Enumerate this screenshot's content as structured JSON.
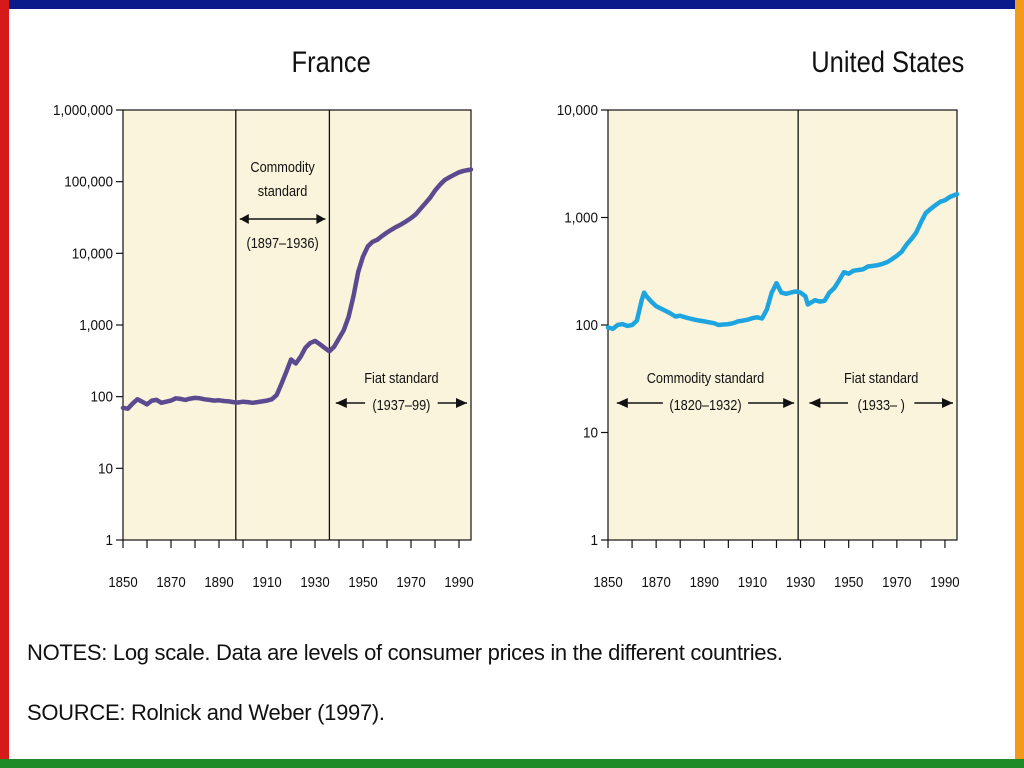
{
  "notes": "NOTES: Log scale. Data are levels of consumer prices in the different countries.",
  "source": "SOURCE: Rolnick and Weber (1997).",
  "colors": {
    "frame_top": "#0b1a8a",
    "frame_left": "#d61a1a",
    "frame_right": "#f39a1a",
    "frame_bottom": "#1f8a28",
    "plot_background": "#fbf4dc"
  },
  "chart_data": [
    {
      "type": "line",
      "title": "France",
      "scale_y": "log",
      "ylim": [
        1,
        1000000
      ],
      "xlim": [
        1850,
        1995
      ],
      "y_ticks": [
        {
          "value": 1,
          "label": "1"
        },
        {
          "value": 10,
          "label": "10"
        },
        {
          "value": 100,
          "label": "100"
        },
        {
          "value": 1000,
          "label": "1,000"
        },
        {
          "value": 10000,
          "label": "10,000"
        },
        {
          "value": 100000,
          "label": "100,000"
        },
        {
          "value": 1000000,
          "label": "1,000,000"
        }
      ],
      "x_ticks": [
        {
          "value": 1850,
          "label": "1850"
        },
        {
          "value": 1870,
          "label": "1870"
        },
        {
          "value": 1890,
          "label": "1890"
        },
        {
          "value": 1910,
          "label": "1910"
        },
        {
          "value": 1930,
          "label": "1930"
        },
        {
          "value": 1950,
          "label": "1950"
        },
        {
          "value": 1970,
          "label": "1970"
        },
        {
          "value": 1990,
          "label": "1990"
        }
      ],
      "regime_lines": [
        1897,
        1936
      ],
      "annotations": [
        {
          "lines": [
            "Commodity",
            "standard",
            "(1897–1936)"
          ],
          "arrow": [
            1897,
            1936
          ],
          "y_value": 17000
        },
        {
          "lines": [
            "Fiat standard",
            "(1937–99)"
          ],
          "arrow": [
            1937,
            1995
          ],
          "y_value": 100
        }
      ],
      "series": [
        {
          "color": "#5b4a8f",
          "x": [
            1850,
            1852,
            1854,
            1856,
            1858,
            1860,
            1862,
            1864,
            1866,
            1868,
            1870,
            1872,
            1874,
            1876,
            1878,
            1880,
            1882,
            1884,
            1886,
            1888,
            1890,
            1892,
            1894,
            1896,
            1898,
            1900,
            1902,
            1904,
            1906,
            1908,
            1910,
            1912,
            1914,
            1916,
            1918,
            1920,
            1922,
            1924,
            1926,
            1928,
            1930,
            1932,
            1934,
            1936,
            1938,
            1940,
            1942,
            1944,
            1946,
            1948,
            1950,
            1952,
            1954,
            1956,
            1958,
            1960,
            1962,
            1964,
            1966,
            1968,
            1970,
            1972,
            1974,
            1976,
            1978,
            1980,
            1982,
            1984,
            1986,
            1988,
            1990,
            1992,
            1995
          ],
          "y": [
            70,
            68,
            80,
            92,
            85,
            78,
            88,
            90,
            82,
            85,
            88,
            95,
            93,
            90,
            94,
            96,
            95,
            92,
            90,
            88,
            89,
            87,
            86,
            84,
            83,
            85,
            84,
            82,
            84,
            86,
            88,
            92,
            105,
            150,
            220,
            330,
            290,
            360,
            480,
            560,
            600,
            540,
            480,
            430,
            500,
            650,
            850,
            1300,
            2500,
            5500,
            9000,
            12500,
            14500,
            15500,
            17500,
            19500,
            21500,
            23500,
            25500,
            28000,
            31000,
            35000,
            42000,
            50000,
            60000,
            75000,
            90000,
            105000,
            115000,
            125000,
            135000,
            142000,
            148000
          ]
        }
      ]
    },
    {
      "type": "line",
      "title": "United States",
      "scale_y": "log",
      "ylim": [
        1,
        10000
      ],
      "xlim": [
        1850,
        1995
      ],
      "y_ticks": [
        {
          "value": 1,
          "label": "1"
        },
        {
          "value": 10,
          "label": "10"
        },
        {
          "value": 100,
          "label": "100"
        },
        {
          "value": 1000,
          "label": "1,000"
        },
        {
          "value": 10000,
          "label": "10,000"
        }
      ],
      "x_ticks": [
        {
          "value": 1850,
          "label": "1850"
        },
        {
          "value": 1870,
          "label": "1870"
        },
        {
          "value": 1890,
          "label": "1890"
        },
        {
          "value": 1910,
          "label": "1910"
        },
        {
          "value": 1930,
          "label": "1930"
        },
        {
          "value": 1950,
          "label": "1950"
        },
        {
          "value": 1970,
          "label": "1970"
        },
        {
          "value": 1990,
          "label": "1990"
        }
      ],
      "regime_lines": [
        1929
      ],
      "annotations": [
        {
          "lines": [
            "Commodity standard",
            "(1820–1932)"
          ],
          "arrow": [
            1852,
            1929
          ],
          "y_value": 30
        },
        {
          "lines": [
            "Fiat standard",
            "(1933– )"
          ],
          "arrow": [
            1932,
            1995
          ],
          "y_value": 30
        }
      ],
      "series": [
        {
          "color": "#1ea5e0",
          "x": [
            1850,
            1852,
            1854,
            1856,
            1858,
            1860,
            1862,
            1864,
            1865,
            1866,
            1868,
            1870,
            1872,
            1874,
            1876,
            1878,
            1880,
            1882,
            1884,
            1886,
            1888,
            1890,
            1892,
            1894,
            1896,
            1898,
            1900,
            1902,
            1904,
            1906,
            1908,
            1910,
            1912,
            1914,
            1916,
            1918,
            1920,
            1922,
            1924,
            1926,
            1928,
            1930,
            1932,
            1933,
            1934,
            1936,
            1938,
            1940,
            1942,
            1944,
            1946,
            1948,
            1950,
            1952,
            1954,
            1956,
            1958,
            1960,
            1962,
            1964,
            1966,
            1968,
            1970,
            1972,
            1974,
            1976,
            1978,
            1980,
            1982,
            1984,
            1986,
            1988,
            1990,
            1992,
            1995
          ],
          "y": [
            95,
            92,
            100,
            102,
            98,
            100,
            110,
            170,
            200,
            185,
            165,
            150,
            142,
            135,
            128,
            120,
            122,
            118,
            115,
            112,
            110,
            108,
            106,
            104,
            100,
            101,
            102,
            104,
            108,
            110,
            112,
            116,
            118,
            115,
            140,
            200,
            245,
            200,
            195,
            200,
            205,
            200,
            185,
            155,
            160,
            170,
            165,
            168,
            200,
            220,
            260,
            310,
            300,
            320,
            325,
            330,
            350,
            355,
            360,
            370,
            385,
            410,
            440,
            480,
            560,
            630,
            720,
            900,
            1100,
            1200,
            1300,
            1400,
            1450,
            1550,
            1650
          ]
        }
      ]
    }
  ]
}
